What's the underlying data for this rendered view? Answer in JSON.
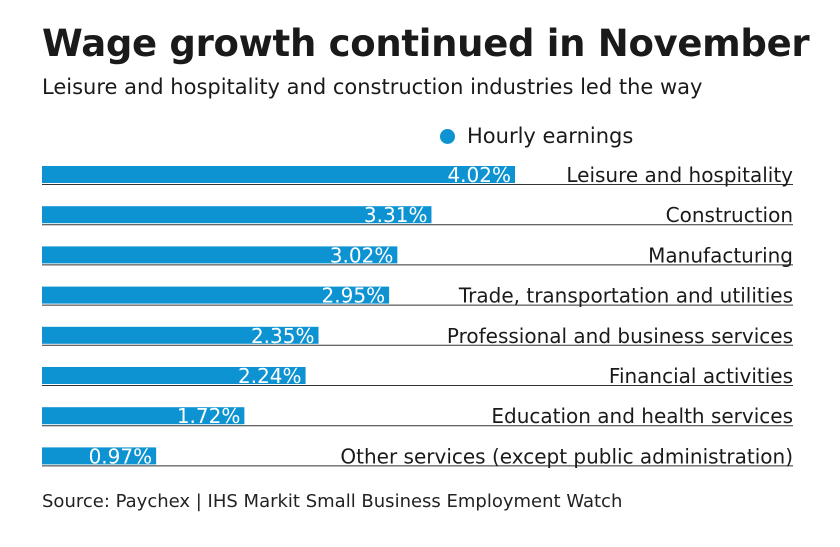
{
  "header": {
    "title": "Wage growth continued in November",
    "subtitle": "Leisure and hospitality and construction industries led the way"
  },
  "footer": {
    "source": "Source: Paychex | IHS Markit Small Business Employment Watch"
  },
  "colors": {
    "bar": "#0d93d2",
    "rule": "#333333",
    "value_text": "#ffffff"
  },
  "chart_data": {
    "type": "bar",
    "orientation": "horizontal",
    "categories": [
      "Leisure and hospitality",
      "Construction",
      "Manufacturing",
      "Trade, transportation and utilities",
      "Professional and business services",
      "Financial activities",
      "Education and health services",
      "Other services (except public administration)"
    ],
    "series": [
      {
        "name": "Hourly earnings",
        "values": [
          4.02,
          3.31,
          3.02,
          2.95,
          2.35,
          2.24,
          1.72,
          0.97
        ],
        "labels": [
          "4.02%",
          "3.31%",
          "3.02%",
          "2.95%",
          "2.35%",
          "2.24%",
          "1.72%",
          "0.97%"
        ]
      }
    ],
    "title": "Wage growth continued in November",
    "xlabel": "",
    "ylabel": "",
    "xlim": [
      0,
      4.02
    ],
    "grid": false,
    "legend": "top"
  }
}
